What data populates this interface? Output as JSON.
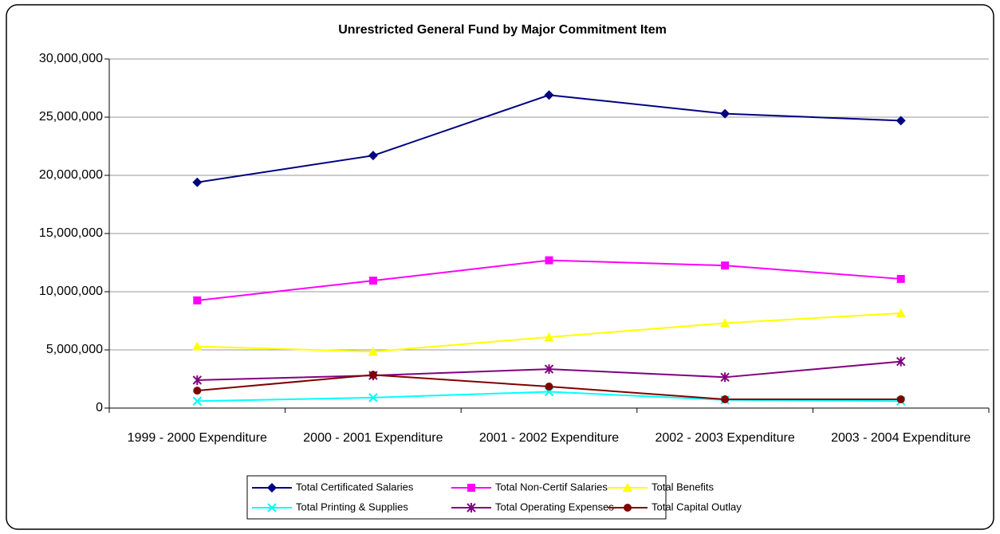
{
  "chart_data": {
    "type": "line",
    "title": "Unrestricted General Fund by Major Commitment Item",
    "categories": [
      "1999 - 2000 Expenditure",
      "2000 - 2001 Expenditure",
      "2001 - 2002 Expenditure",
      "2002 - 2003 Expenditure",
      "2003 - 2004 Expenditure"
    ],
    "series": [
      {
        "name": "Total Certificated Salaries",
        "color": "#000080",
        "marker": "diamond",
        "values": [
          19400000,
          21700000,
          26900000,
          25300000,
          24700000
        ]
      },
      {
        "name": "Total Non-Certif Salaries",
        "color": "#ff00ff",
        "marker": "square",
        "values": [
          9250000,
          10950000,
          12700000,
          12250000,
          11100000
        ]
      },
      {
        "name": "Total Benefits",
        "color": "#ffff00",
        "marker": "triangle",
        "values": [
          5300000,
          4850000,
          6100000,
          7300000,
          8150000
        ]
      },
      {
        "name": "Total Printing & Supplies",
        "color": "#00ffff",
        "marker": "x",
        "values": [
          600000,
          900000,
          1400000,
          700000,
          600000
        ]
      },
      {
        "name": "Total Operating Expenses",
        "color": "#800080",
        "marker": "star",
        "values": [
          2400000,
          2800000,
          3350000,
          2650000,
          4000000
        ]
      },
      {
        "name": "Total Capital Outlay",
        "color": "#800000",
        "marker": "circle",
        "values": [
          1500000,
          2850000,
          1850000,
          750000,
          750000
        ]
      }
    ],
    "ylim": [
      0,
      30000000
    ],
    "yticks": [
      0,
      {
        "value": 5000000,
        "label": "5,000,000"
      },
      {
        "value": 10000000,
        "label": "10,000,000"
      },
      {
        "value": 15000000,
        "label": "15,000,000"
      },
      {
        "value": 20000000,
        "label": "20,000,000"
      },
      {
        "value": 25000000,
        "label": "25,000,000"
      },
      {
        "value": 30000000,
        "label": "30,000,000"
      }
    ],
    "grid": true,
    "legend": "bottom"
  }
}
